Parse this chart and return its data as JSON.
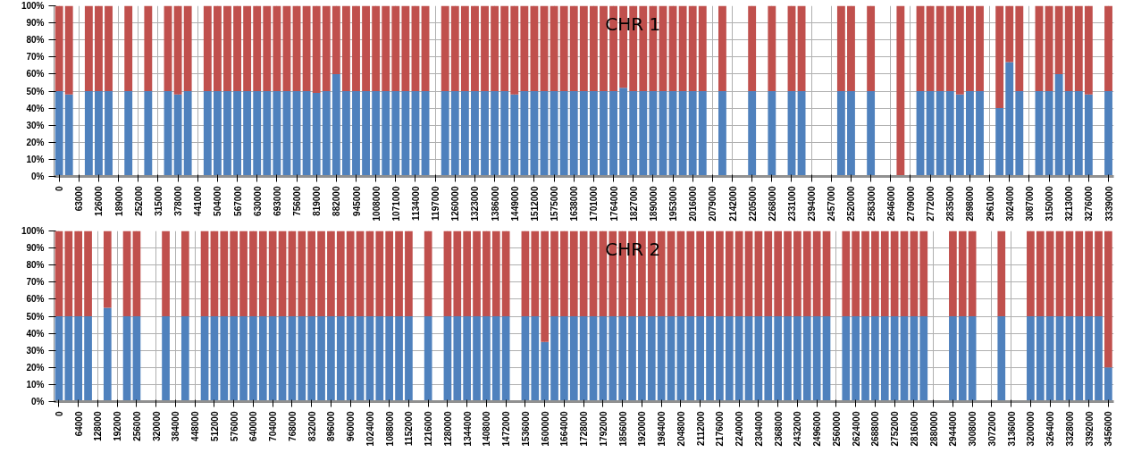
{
  "chart_data": [
    {
      "type": "bar",
      "stacked": true,
      "grid": true,
      "annotations": [
        "CHR 1"
      ],
      "xlim": [
        -16000,
        3356000
      ],
      "ylim": [
        0,
        100
      ],
      "yticks": [
        {
          "value": 0,
          "label": "0%"
        },
        {
          "value": 10,
          "label": "10%"
        },
        {
          "value": 20,
          "label": "20%"
        },
        {
          "value": 30,
          "label": "30%"
        },
        {
          "value": 40,
          "label": "40%"
        },
        {
          "value": 50,
          "label": "50%"
        },
        {
          "value": 60,
          "label": "60%"
        },
        {
          "value": 70,
          "label": "70%"
        },
        {
          "value": 80,
          "label": "80%"
        },
        {
          "value": 90,
          "label": "90%"
        },
        {
          "value": 100,
          "label": "100%"
        }
      ],
      "xticks": [
        0,
        63000,
        126000,
        189000,
        252000,
        315000,
        378000,
        441000,
        504000,
        567000,
        630000,
        693000,
        756000,
        819000,
        882000,
        945000,
        1008000,
        1071000,
        1134000,
        1197000,
        1260000,
        1323000,
        1386000,
        1449000,
        1512000,
        1575000,
        1638000,
        1701000,
        1764000,
        1827000,
        1890000,
        1953000,
        2016000,
        2079000,
        2142000,
        2205000,
        2268000,
        2331000,
        2394000,
        2457000,
        2520000,
        2583000,
        2646000,
        2709000,
        2772000,
        2835000,
        2898000,
        2961000,
        3024000,
        3087000,
        3150000,
        3213000,
        3276000,
        3339000
      ],
      "x": [
        0,
        31500,
        63000,
        94500,
        126000,
        157500,
        189000,
        220500,
        252000,
        283500,
        315000,
        346500,
        378000,
        409500,
        441000,
        472500,
        504000,
        535500,
        567000,
        598500,
        630000,
        661500,
        693000,
        724500,
        756000,
        787500,
        819000,
        850500,
        882000,
        913500,
        945000,
        976500,
        1008000,
        1039500,
        1071000,
        1102500,
        1134000,
        1165500,
        1197000,
        1228500,
        1260000,
        1291500,
        1323000,
        1354500,
        1386000,
        1417500,
        1449000,
        1480500,
        1512000,
        1543500,
        1575000,
        1606500,
        1638000,
        1669500,
        1701000,
        1732500,
        1764000,
        1795500,
        1827000,
        1858500,
        1890000,
        1921500,
        1953000,
        1984500,
        2016000,
        2047500,
        2079000,
        2110500,
        2142000,
        2173500,
        2205000,
        2236500,
        2268000,
        2299500,
        2331000,
        2362500,
        2394000,
        2425500,
        2457000,
        2488500,
        2520000,
        2551500,
        2583000,
        2614500,
        2646000,
        2677500,
        2709000,
        2740500,
        2772000,
        2803500,
        2835000,
        2866500,
        2898000,
        2929500,
        2961000,
        2992500,
        3024000,
        3055500,
        3087000,
        3118500,
        3150000,
        3181500,
        3213000,
        3244500,
        3276000,
        3307500,
        3339000
      ],
      "series": [
        {
          "color": "#4f81bd",
          "values": [
            50,
            48,
            null,
            50,
            50,
            50,
            null,
            50,
            null,
            50,
            null,
            50,
            48,
            50,
            null,
            50,
            50,
            50,
            50,
            50,
            50,
            50,
            50,
            50,
            50,
            50,
            49,
            50,
            60,
            50,
            50,
            50,
            50,
            50,
            50,
            50,
            50,
            50,
            null,
            50,
            50,
            50,
            50,
            50,
            50,
            50,
            48,
            50,
            50,
            50,
            50,
            50,
            50,
            50,
            50,
            50,
            50,
            52,
            50,
            50,
            50,
            50,
            50,
            50,
            50,
            50,
            null,
            50,
            null,
            null,
            50,
            null,
            50,
            null,
            50,
            50,
            null,
            null,
            null,
            50,
            50,
            null,
            50,
            null,
            null,
            0,
            null,
            50,
            50,
            50,
            50,
            48,
            50,
            50,
            null,
            40,
            67,
            50,
            null,
            50,
            50,
            60,
            50,
            50,
            48,
            null,
            50
          ]
        },
        {
          "color": "#c0504d",
          "values": [
            50,
            52,
            null,
            50,
            50,
            50,
            null,
            50,
            null,
            50,
            null,
            50,
            52,
            50,
            null,
            50,
            50,
            50,
            50,
            50,
            50,
            50,
            50,
            50,
            50,
            50,
            51,
            50,
            40,
            50,
            50,
            50,
            50,
            50,
            50,
            50,
            50,
            50,
            null,
            50,
            50,
            50,
            50,
            50,
            50,
            50,
            52,
            50,
            50,
            50,
            50,
            50,
            50,
            50,
            50,
            50,
            50,
            48,
            50,
            50,
            50,
            50,
            50,
            50,
            50,
            50,
            null,
            50,
            null,
            null,
            50,
            null,
            50,
            null,
            50,
            50,
            null,
            null,
            null,
            50,
            50,
            null,
            50,
            null,
            null,
            100,
            null,
            50,
            50,
            50,
            50,
            52,
            50,
            50,
            null,
            60,
            33,
            50,
            null,
            50,
            50,
            40,
            50,
            50,
            52,
            null,
            50
          ]
        }
      ]
    },
    {
      "type": "bar",
      "stacked": true,
      "grid": true,
      "annotations": [
        "CHR 2"
      ],
      "xlim": [
        -16000,
        3474000
      ],
      "ylim": [
        0,
        100
      ],
      "yticks": [
        {
          "value": 0,
          "label": "0%"
        },
        {
          "value": 10,
          "label": "10%"
        },
        {
          "value": 20,
          "label": "20%"
        },
        {
          "value": 30,
          "label": "30%"
        },
        {
          "value": 40,
          "label": "40%"
        },
        {
          "value": 50,
          "label": "50%"
        },
        {
          "value": 60,
          "label": "60%"
        },
        {
          "value": 70,
          "label": "70%"
        },
        {
          "value": 80,
          "label": "80%"
        },
        {
          "value": 90,
          "label": "90%"
        },
        {
          "value": 100,
          "label": "100%"
        }
      ],
      "xticks": [
        0,
        64000,
        128000,
        192000,
        256000,
        320000,
        384000,
        448000,
        512000,
        576000,
        640000,
        704000,
        768000,
        832000,
        896000,
        960000,
        1024000,
        1088000,
        1152000,
        1216000,
        1280000,
        1344000,
        1408000,
        1472000,
        1536000,
        1600000,
        1664000,
        1728000,
        1792000,
        1856000,
        1920000,
        1984000,
        2048000,
        2112000,
        2176000,
        2240000,
        2304000,
        2368000,
        2432000,
        2496000,
        2560000,
        2624000,
        2688000,
        2752000,
        2816000,
        2880000,
        2944000,
        3008000,
        3072000,
        3136000,
        3200000,
        3264000,
        3328000,
        3392000,
        3456000
      ],
      "x": [
        0,
        32000,
        64000,
        96000,
        128000,
        160000,
        192000,
        224000,
        256000,
        288000,
        320000,
        352000,
        384000,
        416000,
        448000,
        480000,
        512000,
        544000,
        576000,
        608000,
        640000,
        672000,
        704000,
        736000,
        768000,
        800000,
        832000,
        864000,
        896000,
        928000,
        960000,
        992000,
        1024000,
        1056000,
        1088000,
        1120000,
        1152000,
        1184000,
        1216000,
        1248000,
        1280000,
        1312000,
        1344000,
        1376000,
        1408000,
        1440000,
        1472000,
        1504000,
        1536000,
        1568000,
        1600000,
        1632000,
        1664000,
        1696000,
        1728000,
        1760000,
        1792000,
        1824000,
        1856000,
        1888000,
        1920000,
        1952000,
        1984000,
        2016000,
        2048000,
        2080000,
        2112000,
        2144000,
        2176000,
        2208000,
        2240000,
        2272000,
        2304000,
        2336000,
        2368000,
        2400000,
        2432000,
        2464000,
        2496000,
        2528000,
        2560000,
        2592000,
        2624000,
        2656000,
        2688000,
        2720000,
        2752000,
        2784000,
        2816000,
        2848000,
        2880000,
        2912000,
        2944000,
        2976000,
        3008000,
        3040000,
        3072000,
        3104000,
        3136000,
        3168000,
        3200000,
        3232000,
        3264000,
        3296000,
        3328000,
        3360000,
        3392000,
        3424000,
        3456000
      ],
      "series": [
        {
          "color": "#4f81bd",
          "values": [
            50,
            50,
            50,
            50,
            null,
            55,
            null,
            50,
            50,
            null,
            null,
            50,
            null,
            50,
            null,
            50,
            50,
            50,
            50,
            50,
            50,
            50,
            50,
            50,
            50,
            50,
            50,
            50,
            50,
            50,
            50,
            50,
            50,
            50,
            50,
            50,
            50,
            null,
            50,
            null,
            50,
            50,
            50,
            50,
            50,
            50,
            50,
            null,
            50,
            50,
            35,
            50,
            50,
            50,
            50,
            50,
            50,
            50,
            50,
            50,
            50,
            50,
            50,
            50,
            50,
            50,
            50,
            50,
            50,
            50,
            50,
            50,
            50,
            50,
            50,
            50,
            50,
            50,
            50,
            50,
            null,
            50,
            50,
            50,
            50,
            50,
            50,
            50,
            50,
            50,
            null,
            null,
            50,
            50,
            50,
            null,
            null,
            50,
            null,
            null,
            50,
            50,
            50,
            50,
            50,
            50,
            50,
            50,
            20
          ]
        },
        {
          "color": "#c0504d",
          "values": [
            50,
            50,
            50,
            50,
            null,
            45,
            null,
            50,
            50,
            null,
            null,
            50,
            null,
            50,
            null,
            50,
            50,
            50,
            50,
            50,
            50,
            50,
            50,
            50,
            50,
            50,
            50,
            50,
            50,
            50,
            50,
            50,
            50,
            50,
            50,
            50,
            50,
            null,
            50,
            null,
            50,
            50,
            50,
            50,
            50,
            50,
            50,
            null,
            50,
            50,
            65,
            50,
            50,
            50,
            50,
            50,
            50,
            50,
            50,
            50,
            50,
            50,
            50,
            50,
            50,
            50,
            50,
            50,
            50,
            50,
            50,
            50,
            50,
            50,
            50,
            50,
            50,
            50,
            50,
            50,
            null,
            50,
            50,
            50,
            50,
            50,
            50,
            50,
            50,
            50,
            null,
            null,
            50,
            50,
            50,
            null,
            null,
            50,
            null,
            null,
            50,
            50,
            50,
            50,
            50,
            50,
            50,
            50,
            80
          ]
        }
      ]
    }
  ]
}
